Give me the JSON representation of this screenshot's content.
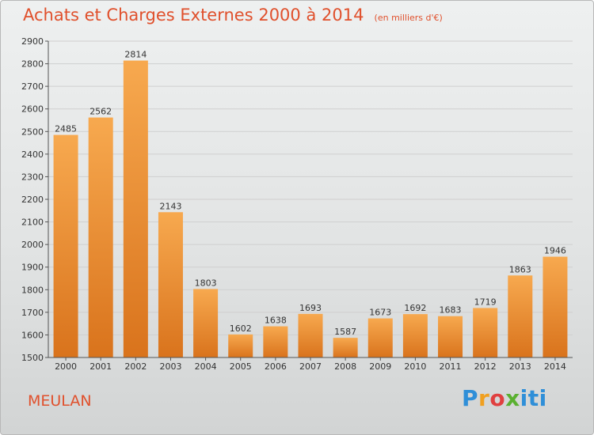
{
  "header": {
    "title": "Achats et Charges Externes 2000 à 2014",
    "subtitle": "(en milliers d'€)"
  },
  "footer": {
    "commune": "MEULAN",
    "logo_text": "Proxiti"
  },
  "colors": {
    "title": "#e0502c",
    "bar_light": "#f7a94f",
    "bar_dark": "#d9731c",
    "axis": "#555555",
    "grid": "#cfcfcf"
  },
  "chart_data": {
    "type": "bar",
    "title": "Achats et Charges Externes 2000 à 2014",
    "subtitle": "(en milliers d'€)",
    "categories": [
      "2000",
      "2001",
      "2002",
      "2003",
      "2004",
      "2005",
      "2006",
      "2007",
      "2008",
      "2009",
      "2010",
      "2011",
      "2012",
      "2013",
      "2014"
    ],
    "values": [
      2485,
      2562,
      2814,
      2143,
      1803,
      1602,
      1638,
      1693,
      1587,
      1673,
      1692,
      1683,
      1719,
      1863,
      1946
    ],
    "ylim": [
      1500,
      2900
    ],
    "yticks": [
      1500,
      1600,
      1700,
      1800,
      1900,
      2000,
      2100,
      2200,
      2300,
      2400,
      2500,
      2600,
      2700,
      2800,
      2900
    ],
    "grid": true,
    "legend": "none",
    "data_labels": true
  }
}
